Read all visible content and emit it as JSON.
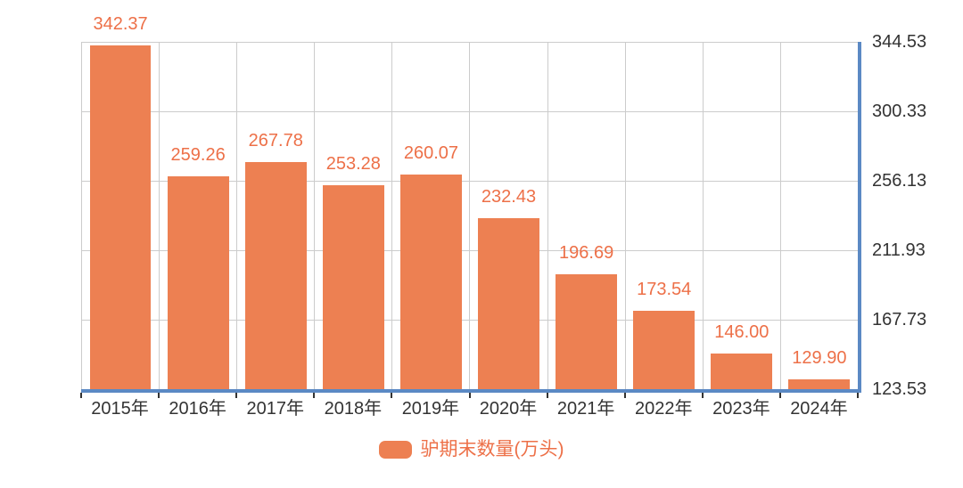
{
  "chart_data": {
    "type": "bar",
    "title": "",
    "categories": [
      "2015年",
      "2016年",
      "2017年",
      "2018年",
      "2019年",
      "2020年",
      "2021年",
      "2022年",
      "2023年",
      "2024年"
    ],
    "values": [
      342.37,
      259.26,
      267.78,
      253.28,
      260.07,
      232.43,
      196.69,
      173.54,
      146.0,
      129.9
    ],
    "value_labels": [
      "342.37",
      "259.26",
      "267.78",
      "253.28",
      "260.07",
      "232.43",
      "196.69",
      "173.54",
      "146.00",
      "129.90"
    ],
    "series": [
      {
        "name": "驴期末数量(万头)",
        "values": [
          342.37,
          259.26,
          267.78,
          253.28,
          260.07,
          232.43,
          196.69,
          173.54,
          146.0,
          129.9
        ]
      }
    ],
    "xlabel": "",
    "ylabel": "",
    "y_axis": {
      "side": "right",
      "min": 123.53,
      "max": 344.53,
      "ticks": [
        123.53,
        167.73,
        211.93,
        256.13,
        300.33,
        344.53
      ],
      "tick_labels": [
        "123.53",
        "167.73",
        "211.93",
        "256.13",
        "300.33",
        "344.53"
      ]
    },
    "grid": true,
    "legend": {
      "position": "bottom",
      "label": "驴期末数量(万头)"
    },
    "colors": {
      "bar": "#ED8052",
      "value_label": "#ED7048",
      "axis_line": "#5B89C4",
      "grid_line": "#CCCCCC",
      "axis_text": "#333333"
    }
  }
}
